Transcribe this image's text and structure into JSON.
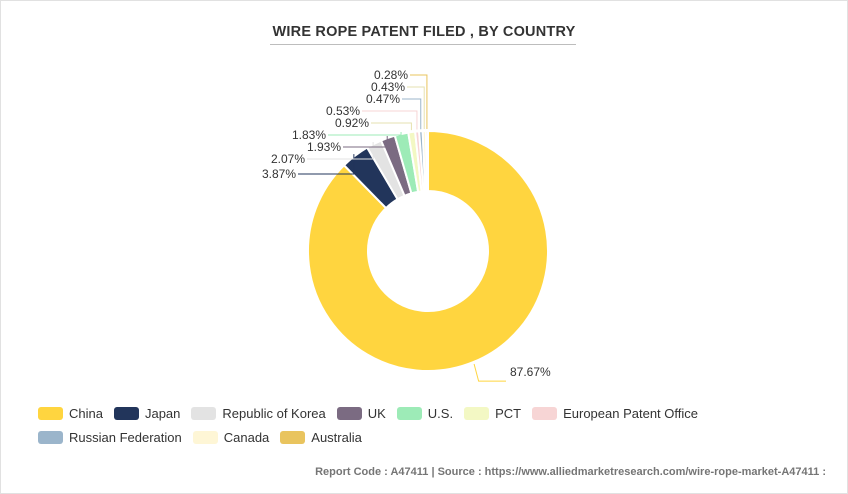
{
  "title": "WIRE ROPE PATENT FILED , BY COUNTRY",
  "chart_data": {
    "type": "pie",
    "variant": "donut",
    "categories": [
      "China",
      "Japan",
      "Republic of Korea",
      "UK",
      "U.S.",
      "PCT",
      "European Patent Office",
      "Russian Federation",
      "Canada",
      "Australia"
    ],
    "values": [
      87.67,
      3.87,
      2.07,
      1.93,
      1.83,
      0.92,
      0.53,
      0.47,
      0.43,
      0.28
    ],
    "labels": [
      "87.67%",
      "3.87%",
      "2.07%",
      "1.93%",
      "1.83%",
      "0.92%",
      "0.53%",
      "0.47%",
      "0.43%",
      "0.28%"
    ],
    "colors": [
      "#FFD53F",
      "#22355B",
      "#E3E3E3",
      "#7B6B82",
      "#9DEBB7",
      "#F3F8C4",
      "#F7D5D5",
      "#9BB5CB",
      "#FEF6D6",
      "#E9C45E"
    ],
    "legend_position": "bottom"
  },
  "footer": "Report Code : A47411  |  Source : https://www.alliedmarketresearch.com/wire-rope-market-A47411 :"
}
